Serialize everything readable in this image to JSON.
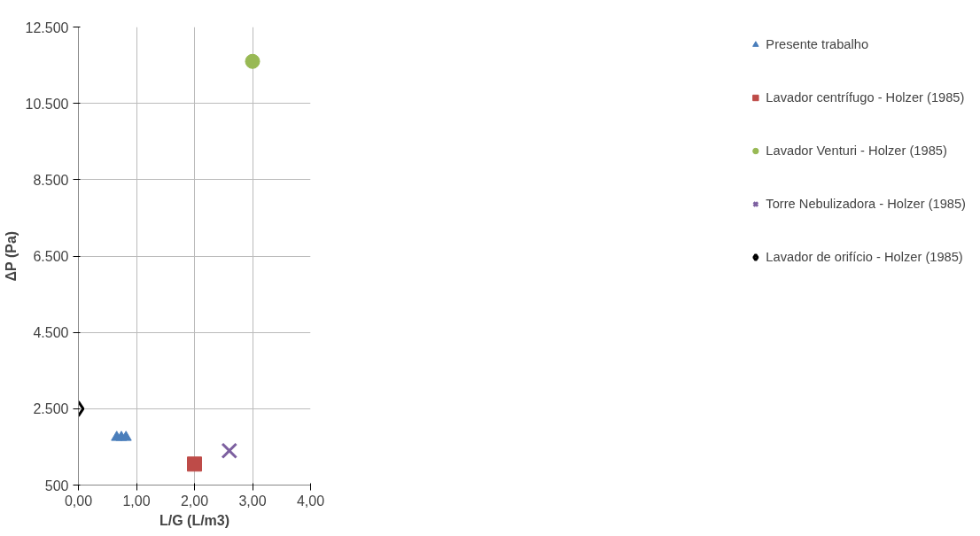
{
  "chart_data": {
    "type": "scatter",
    "xlabel": "L/G (L/m3)",
    "ylabel": "ΔP (Pa)",
    "xlim": [
      0,
      4
    ],
    "ylim": [
      500,
      12500
    ],
    "xticks": [
      {
        "value": 0,
        "label": "0,00"
      },
      {
        "value": 1,
        "label": "1,00"
      },
      {
        "value": 2,
        "label": "2,00"
      },
      {
        "value": 3,
        "label": "3,00"
      },
      {
        "value": 4,
        "label": "4,00"
      }
    ],
    "yticks": [
      {
        "value": 500,
        "label": "500"
      },
      {
        "value": 2500,
        "label": "2.500"
      },
      {
        "value": 4500,
        "label": "4.500"
      },
      {
        "value": 6500,
        "label": "6.500"
      },
      {
        "value": 8500,
        "label": "8.500"
      },
      {
        "value": 10500,
        "label": "10.500"
      },
      {
        "value": 12500,
        "label": "12.500"
      }
    ],
    "grid": true,
    "legend": "right",
    "series": [
      {
        "name": "Presente trabalho",
        "color": "#4a7ebb",
        "marker": "triangle",
        "x": [
          0.66,
          0.74,
          0.82
        ],
        "values": [
          1750,
          1750,
          1750
        ]
      },
      {
        "name": "Lavador centrífugo - Holzer (1985)",
        "color": "#be4b48",
        "marker": "square",
        "x": [
          2.0
        ],
        "values": [
          1050
        ]
      },
      {
        "name": "Lavador Venturi - Holzer (1985)",
        "color": "#98b954",
        "marker": "circle",
        "x": [
          3.0
        ],
        "values": [
          11600
        ]
      },
      {
        "name": "Torre Nebulizadora - Holzer (1985)",
        "color": "#7d60a0",
        "marker": "cross",
        "x": [
          2.6
        ],
        "values": [
          1400
        ]
      },
      {
        "name": "Lavador de orifício - Holzer (1985)",
        "color": "#000000",
        "marker": "diamond",
        "x": [
          0.0
        ],
        "values": [
          2500
        ]
      }
    ]
  }
}
